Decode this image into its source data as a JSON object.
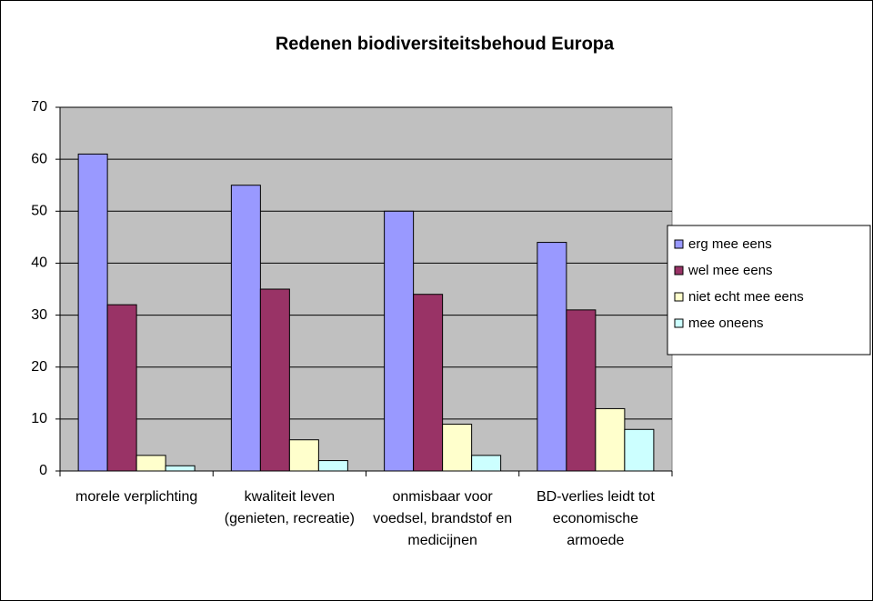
{
  "chart_data": {
    "type": "bar",
    "title": "Redenen biodiversiteitsbehoud Europa",
    "categories": [
      "morele verplichting",
      "kwaliteit leven (genieten, recreatie)",
      "onmisbaar voor voedsel, brandstof en medicijnen",
      "BD-verlies leidt tot economische armoede"
    ],
    "series": [
      {
        "name": "erg mee eens",
        "color": "#9999ff",
        "values": [
          61,
          55,
          50,
          44
        ]
      },
      {
        "name": "wel mee eens",
        "color": "#993366",
        "values": [
          32,
          35,
          34,
          31
        ]
      },
      {
        "name": "niet echt mee eens",
        "color": "#ffffcc",
        "values": [
          3,
          6,
          9,
          12
        ]
      },
      {
        "name": "mee oneens",
        "color": "#ccffff",
        "values": [
          1,
          2,
          3,
          8
        ]
      }
    ],
    "ylim": [
      0,
      70
    ],
    "yticks": [
      0,
      10,
      20,
      30,
      40,
      50,
      60,
      70
    ],
    "grid": true,
    "legend": "right"
  }
}
